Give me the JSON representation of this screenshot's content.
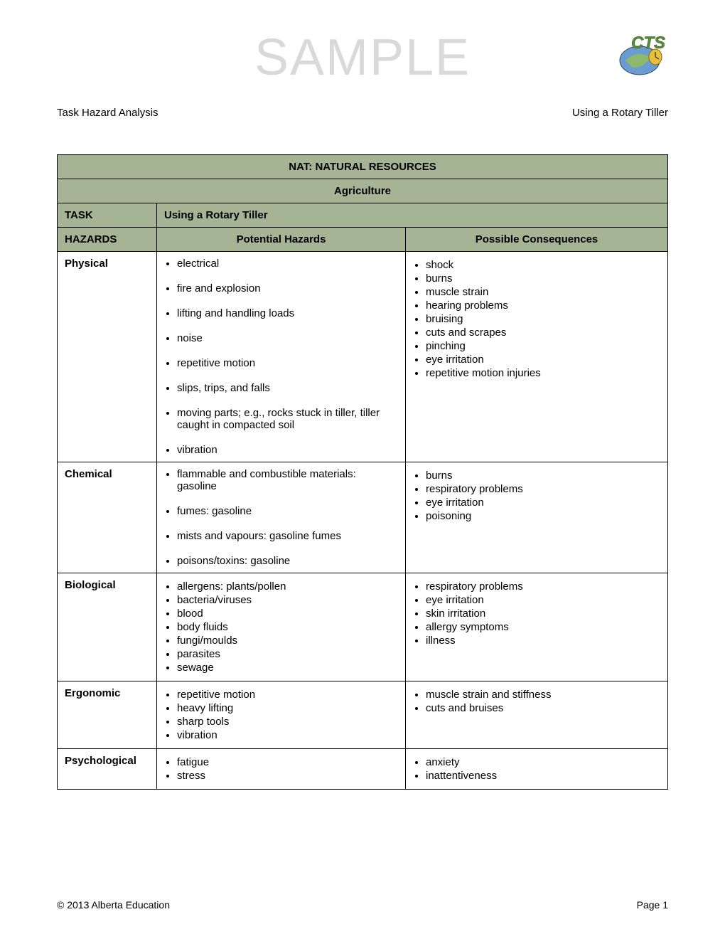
{
  "watermark": "SAMPLE",
  "header": {
    "left": "Task Hazard Analysis",
    "right": "Using a Rotary Tiller"
  },
  "table": {
    "title": "NAT: NATURAL RESOURCES",
    "subtitle": "Agriculture",
    "task_label": "TASK",
    "task_value": "Using a Rotary Tiller",
    "hazards_label": "HAZARDS",
    "col_potential": "Potential Hazards",
    "col_consequences": "Possible Consequences",
    "colors": {
      "header_bg": "#a4b494",
      "border": "#000000",
      "watermark": "#d9d9d9"
    },
    "rows": [
      {
        "category": "Physical",
        "spaced": true,
        "potential": [
          "electrical",
          "fire and explosion",
          "lifting and handling loads",
          "noise",
          "repetitive motion",
          "slips, trips, and falls",
          "moving parts; e.g., rocks stuck in tiller, tiller caught in compacted soil",
          "vibration"
        ],
        "consequences": [
          "shock",
          "burns",
          "muscle strain",
          "hearing problems",
          "bruising",
          "cuts and scrapes",
          "pinching",
          "eye irritation",
          "repetitive motion injuries"
        ]
      },
      {
        "category": "Chemical",
        "spaced": true,
        "potential": [
          "flammable and combustible materials: gasoline",
          "fumes: gasoline",
          "mists and vapours: gasoline fumes",
          "poisons/toxins: gasoline"
        ],
        "consequences": [
          "burns",
          "respiratory problems",
          "eye irritation",
          "poisoning"
        ]
      },
      {
        "category": "Biological",
        "spaced": false,
        "potential": [
          "allergens: plants/pollen",
          "bacteria/viruses",
          "blood",
          "body fluids",
          "fungi/moulds",
          "parasites",
          "sewage"
        ],
        "consequences": [
          "respiratory problems",
          "eye irritation",
          "skin irritation",
          "allergy symptoms",
          "illness"
        ]
      },
      {
        "category": "Ergonomic",
        "spaced": false,
        "potential": [
          "repetitive motion",
          "heavy lifting",
          "sharp tools",
          "vibration"
        ],
        "consequences": [
          "muscle strain and stiffness",
          "cuts and bruises"
        ]
      },
      {
        "category": "Psychological",
        "spaced": false,
        "potential": [
          "fatigue",
          "stress"
        ],
        "consequences": [
          "anxiety",
          "inattentiveness"
        ]
      }
    ]
  },
  "footer": {
    "left": "© 2013 Alberta Education",
    "right": "Page 1"
  }
}
